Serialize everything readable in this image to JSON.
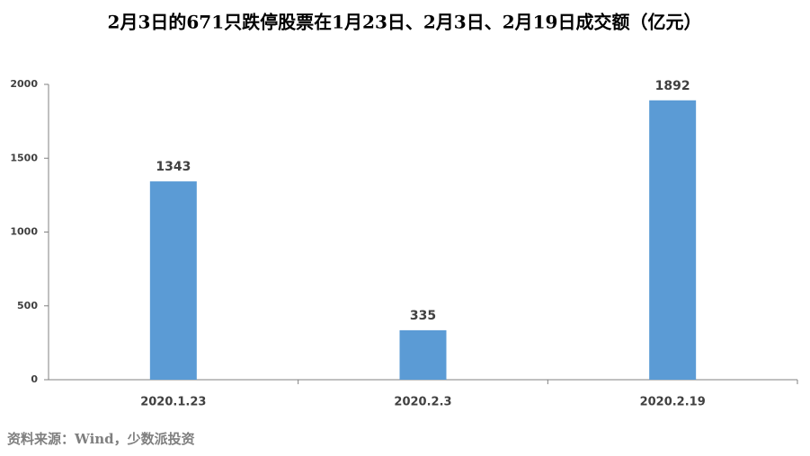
{
  "chart_data": {
    "type": "bar",
    "title": "2月3日的671只跌停股票在1月23日、2月3日、2月19日成交额（亿元）",
    "categories": [
      "2020.1.23",
      "2020.2.3",
      "2020.2.19"
    ],
    "values": [
      1343,
      335,
      1892
    ],
    "color": "#5b9bd5",
    "ylim": [
      0,
      2000
    ],
    "yticks": [
      0,
      500,
      1000,
      1500,
      2000
    ],
    "grid": false,
    "source": "资料来源：Wind，少数派投资"
  }
}
